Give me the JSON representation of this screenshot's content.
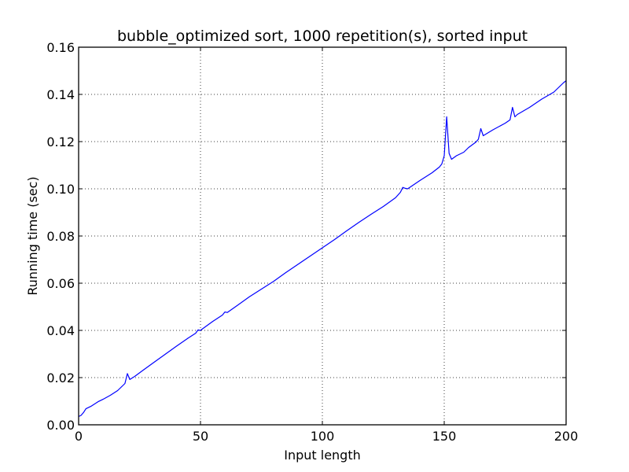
{
  "chart_data": {
    "type": "line",
    "title": "bubble_optimized sort, 1000 repetition(s), sorted input",
    "xlabel": "Input length",
    "ylabel": "Running time (sec)",
    "xlim": [
      0,
      200
    ],
    "ylim": [
      0.0,
      0.16
    ],
    "xticks": [
      0,
      50,
      100,
      150,
      200
    ],
    "xtick_labels": [
      "0",
      "50",
      "100",
      "150",
      "200"
    ],
    "yticks": [
      0.0,
      0.02,
      0.04,
      0.06,
      0.08,
      0.1,
      0.12,
      0.14,
      0.16
    ],
    "ytick_labels": [
      "0.00",
      "0.02",
      "0.04",
      "0.06",
      "0.08",
      "0.10",
      "0.12",
      "0.14",
      "0.16"
    ],
    "grid": true,
    "line_color": "#0000ff",
    "series": [
      {
        "x": [
          0,
          1,
          2,
          3,
          5,
          8,
          10,
          13,
          16,
          18,
          19,
          20,
          21,
          23,
          26,
          30,
          35,
          40,
          45,
          48,
          49,
          50,
          51,
          55,
          59,
          60,
          61,
          65,
          70,
          75,
          80,
          85,
          90,
          95,
          100,
          105,
          110,
          115,
          120,
          125,
          130,
          132,
          133,
          134,
          135,
          140,
          145,
          148,
          149,
          150,
          151,
          152,
          153,
          155,
          158,
          160,
          163,
          164,
          165,
          166,
          170,
          175,
          177,
          178,
          179,
          180,
          185,
          190,
          195,
          199,
          200
        ],
        "y": [
          0.0035,
          0.004,
          0.0052,
          0.0068,
          0.0078,
          0.0098,
          0.0108,
          0.0125,
          0.0145,
          0.0165,
          0.0175,
          0.0217,
          0.0192,
          0.0205,
          0.0228,
          0.0258,
          0.0295,
          0.0332,
          0.0368,
          0.0388,
          0.0402,
          0.04,
          0.0408,
          0.0438,
          0.0465,
          0.0478,
          0.0476,
          0.0505,
          0.0542,
          0.0575,
          0.0608,
          0.0645,
          0.068,
          0.0715,
          0.075,
          0.0785,
          0.0822,
          0.0858,
          0.0892,
          0.0925,
          0.0962,
          0.0985,
          0.1006,
          0.1002,
          0.1,
          0.1035,
          0.1068,
          0.1092,
          0.1105,
          0.114,
          0.1305,
          0.115,
          0.1125,
          0.114,
          0.1155,
          0.1175,
          0.1198,
          0.121,
          0.1255,
          0.1225,
          0.125,
          0.1278,
          0.1292,
          0.1345,
          0.1305,
          0.1315,
          0.1345,
          0.138,
          0.141,
          0.145,
          0.1458
        ]
      }
    ]
  }
}
